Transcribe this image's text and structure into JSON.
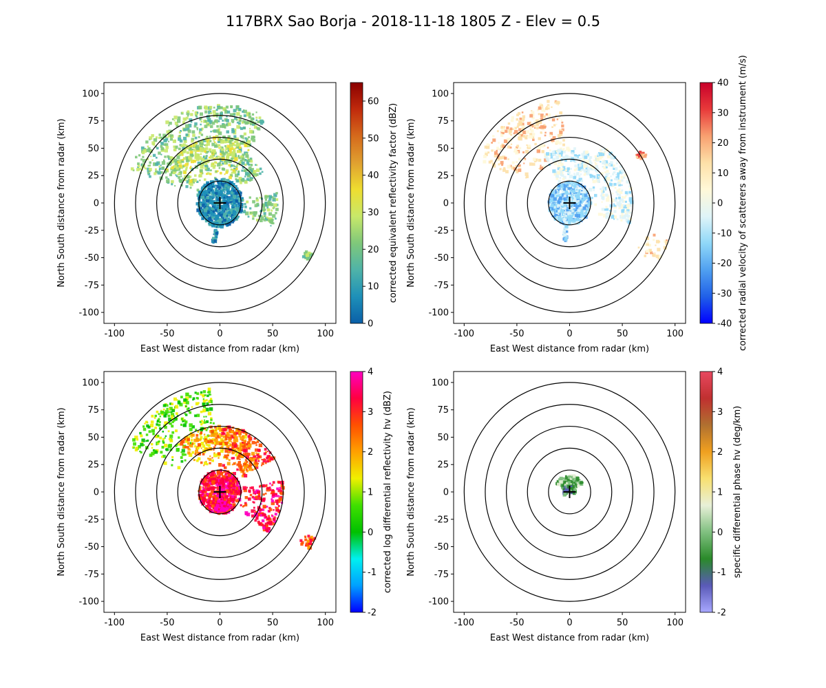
{
  "figure_title": "117BRX Sao Borja - 2018-11-18 1805 Z -  Elev = 0.5",
  "colors": {
    "axes": "#000000",
    "range_rings": "#000000",
    "background": "#ffffff"
  },
  "chart_data": [
    {
      "type": "ppi",
      "panel": "top-left",
      "field": "reflectivity",
      "xlabel": "East West distance from radar (km)",
      "ylabel": "North South distance from radar (km)",
      "xlim": [
        -110,
        110
      ],
      "ylim": [
        -110,
        110
      ],
      "xticks": [
        -100,
        -50,
        0,
        50,
        100
      ],
      "yticks": [
        -100,
        -75,
        -50,
        -25,
        0,
        25,
        50,
        75,
        100
      ],
      "range_rings_km": [
        20,
        40,
        60,
        80,
        100
      ],
      "radar_marker": [
        0,
        0
      ],
      "colorbar": {
        "label": "corrected equivalent reflectivity factor (dBZ)",
        "range": [
          0,
          65
        ],
        "ticks": [
          0,
          10,
          20,
          30,
          40,
          50,
          60
        ],
        "colormap": [
          "#0a5fa8",
          "#1e90b8",
          "#4fb3a8",
          "#7fc87a",
          "#c8e86a",
          "#eedd30",
          "#e0a030",
          "#d56a1c",
          "#c02a0c",
          "#8a0000"
        ]
      },
      "echo_regions": [
        {
          "az": [
            290,
            30
          ],
          "r": [
            20,
            90
          ],
          "color_index": 3
        },
        {
          "az": [
            300,
            30
          ],
          "r": [
            25,
            60
          ],
          "color_index": 4
        },
        {
          "az": [
            0,
            360
          ],
          "r": [
            0,
            22
          ],
          "color_index": 1
        },
        {
          "az": [
            80,
            115
          ],
          "r": [
            20,
            55
          ],
          "color_index": 3
        },
        {
          "az": [
            118,
            122
          ],
          "r": [
            85,
            100
          ],
          "color_index": 3
        },
        {
          "az": [
            185,
            192
          ],
          "r": [
            15,
            37
          ],
          "color_index": 1
        },
        {
          "az": [
            30,
            55
          ],
          "r": [
            20,
            50
          ],
          "color_index": 3
        }
      ]
    },
    {
      "type": "ppi",
      "panel": "top-right",
      "field": "velocity",
      "xlabel": "East West distance from radar (km)",
      "ylabel": "North South distance from radar (km)",
      "xlim": [
        -110,
        110
      ],
      "ylim": [
        -110,
        110
      ],
      "xticks": [
        -100,
        -50,
        0,
        50,
        100
      ],
      "yticks": [
        -100,
        -75,
        -50,
        -25,
        0,
        25,
        50,
        75,
        100
      ],
      "range_rings_km": [
        20,
        40,
        60,
        80,
        100
      ],
      "radar_marker": [
        0,
        0
      ],
      "colorbar": {
        "label": "corrected radial velocity of scatterers away from instrument (m/s)",
        "range": [
          -40,
          40
        ],
        "ticks": [
          -40,
          -30,
          -20,
          -10,
          0,
          10,
          20,
          30,
          40
        ],
        "colormap": [
          "#0000ff",
          "#2060e8",
          "#50a0f0",
          "#90d8f8",
          "#dff4f8",
          "#fff8d8",
          "#fde0a8",
          "#f8a070",
          "#e83a3a",
          "#c8002a"
        ]
      },
      "echo_regions": [
        {
          "az": [
            295,
            355
          ],
          "r": [
            40,
            95
          ],
          "color_index": 6
        },
        {
          "az": [
            330,
            30
          ],
          "r": [
            15,
            50
          ],
          "color_index": 4
        },
        {
          "az": [
            0,
            360
          ],
          "r": [
            0,
            20
          ],
          "color_index": 3
        },
        {
          "az": [
            30,
            110
          ],
          "r": [
            20,
            60
          ],
          "color_index": 4
        },
        {
          "az": [
            110,
            125
          ],
          "r": [
            75,
            100
          ],
          "color_index": 6
        },
        {
          "az": [
            185,
            192
          ],
          "r": [
            15,
            35
          ],
          "color_index": 3
        },
        {
          "az": [
            55,
            60
          ],
          "r": [
            75,
            85
          ],
          "color_index": 7
        }
      ]
    },
    {
      "type": "ppi",
      "panel": "bottom-left",
      "field": "differential_reflectivity",
      "xlabel": "East West distance from radar (km)",
      "ylabel": "North South distance from radar (km)",
      "xlim": [
        -110,
        110
      ],
      "ylim": [
        -110,
        110
      ],
      "xticks": [
        -100,
        -50,
        0,
        50,
        100
      ],
      "yticks": [
        -100,
        -75,
        -50,
        -25,
        0,
        25,
        50,
        75,
        100
      ],
      "range_rings_km": [
        20,
        40,
        60,
        80,
        100
      ],
      "radar_marker": [
        0,
        0
      ],
      "colorbar": {
        "label": "corrected log differential reflectivity hv (dBZ)",
        "range": [
          -2,
          4
        ],
        "ticks": [
          -2,
          -1,
          0,
          1,
          2,
          3,
          4
        ],
        "colormap": [
          "#0000ff",
          "#00a0ff",
          "#00f0f0",
          "#00c000",
          "#40e000",
          "#f0f000",
          "#ffa000",
          "#ff5000",
          "#ff0040",
          "#ff00c0"
        ]
      },
      "echo_regions": [
        {
          "az": [
            295,
            355
          ],
          "r": [
            40,
            95
          ],
          "color_index": 4
        },
        {
          "az": [
            320,
            30
          ],
          "r": [
            25,
            60
          ],
          "color_index": 6
        },
        {
          "az": [
            0,
            60
          ],
          "r": [
            15,
            60
          ],
          "color_index": 7
        },
        {
          "az": [
            0,
            360
          ],
          "r": [
            0,
            20
          ],
          "color_index": 8
        },
        {
          "az": [
            80,
            130
          ],
          "r": [
            15,
            60
          ],
          "color_index": 8
        },
        {
          "az": [
            115,
            122
          ],
          "r": [
            85,
            100
          ],
          "color_index": 7
        },
        {
          "az": [
            150,
            195
          ],
          "r": [
            5,
            18
          ],
          "color_index": 9
        }
      ]
    },
    {
      "type": "ppi",
      "panel": "bottom-right",
      "field": "specific_differential_phase",
      "xlabel": "East West distance from radar (km)",
      "ylabel": "North South distance from radar (km)",
      "xlim": [
        -110,
        110
      ],
      "ylim": [
        -110,
        110
      ],
      "xticks": [
        -100,
        -50,
        0,
        50,
        100
      ],
      "yticks": [
        -100,
        -75,
        -50,
        -25,
        0,
        25,
        50,
        75,
        100
      ],
      "range_rings_km": [
        20,
        40,
        60,
        80,
        100
      ],
      "radar_marker": [
        0,
        0
      ],
      "colorbar": {
        "label": "specific differential phase hv (deg/km)",
        "range": [
          -2,
          4
        ],
        "ticks": [
          -2,
          -1,
          0,
          1,
          2,
          3,
          4
        ],
        "colormap": [
          "#a8a8ff",
          "#5a5ab8",
          "#2a8a2a",
          "#80c080",
          "#e8f0d8",
          "#f8e070",
          "#f0a020",
          "#b07030",
          "#c03030",
          "#e84860"
        ]
      },
      "echo_regions": [
        {
          "az": [
            300,
            60
          ],
          "r": [
            0,
            15
          ],
          "color_index": 3
        },
        {
          "az": [
            240,
            120
          ],
          "r": [
            0,
            6
          ],
          "color_index": 2
        }
      ]
    }
  ]
}
